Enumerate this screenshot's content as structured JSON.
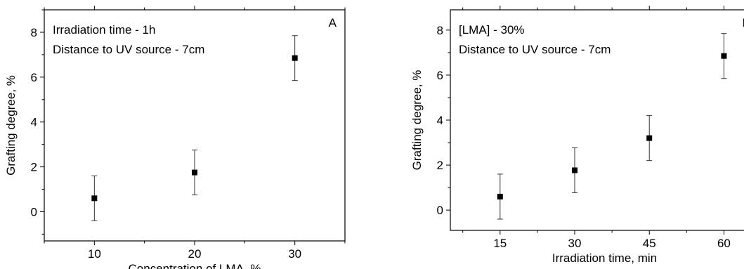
{
  "chart_data": [
    {
      "type": "scatter",
      "panel": "A",
      "xlabel": "Concentration of LMA, %",
      "ylabel": "Grafting degree, %",
      "xlim": [
        5,
        35
      ],
      "ylim": [
        -1.3,
        9
      ],
      "xticks": [
        10,
        20,
        30
      ],
      "yticks": [
        0,
        2,
        4,
        6,
        8
      ],
      "annotations": [
        "Irradiation time - 1h",
        "Distance to UV source - 7cm"
      ],
      "grid": false,
      "series": [
        {
          "marker": "square",
          "color": "#000000",
          "x": [
            10,
            20,
            30
          ],
          "y": [
            0.6,
            1.75,
            6.85
          ],
          "error": [
            1.0,
            1.0,
            1.0
          ]
        }
      ]
    },
    {
      "type": "scatter",
      "panel": "B",
      "xlabel": "Irradiation time, min",
      "ylabel": "Grafting degree, %",
      "xlim": [
        5,
        67
      ],
      "ylim": [
        -0.9,
        8.9
      ],
      "xticks": [
        15,
        30,
        45,
        60
      ],
      "yticks": [
        0,
        2,
        4,
        6,
        8
      ],
      "annotations": [
        "[LMA] - 30%",
        "Distance to UV source - 7cm"
      ],
      "grid": false,
      "series": [
        {
          "marker": "square",
          "color": "#000000",
          "x": [
            15,
            30,
            45,
            60
          ],
          "y": [
            0.6,
            1.77,
            3.2,
            6.85
          ],
          "error": [
            1.0,
            1.0,
            1.0,
            1.0
          ]
        }
      ]
    }
  ]
}
